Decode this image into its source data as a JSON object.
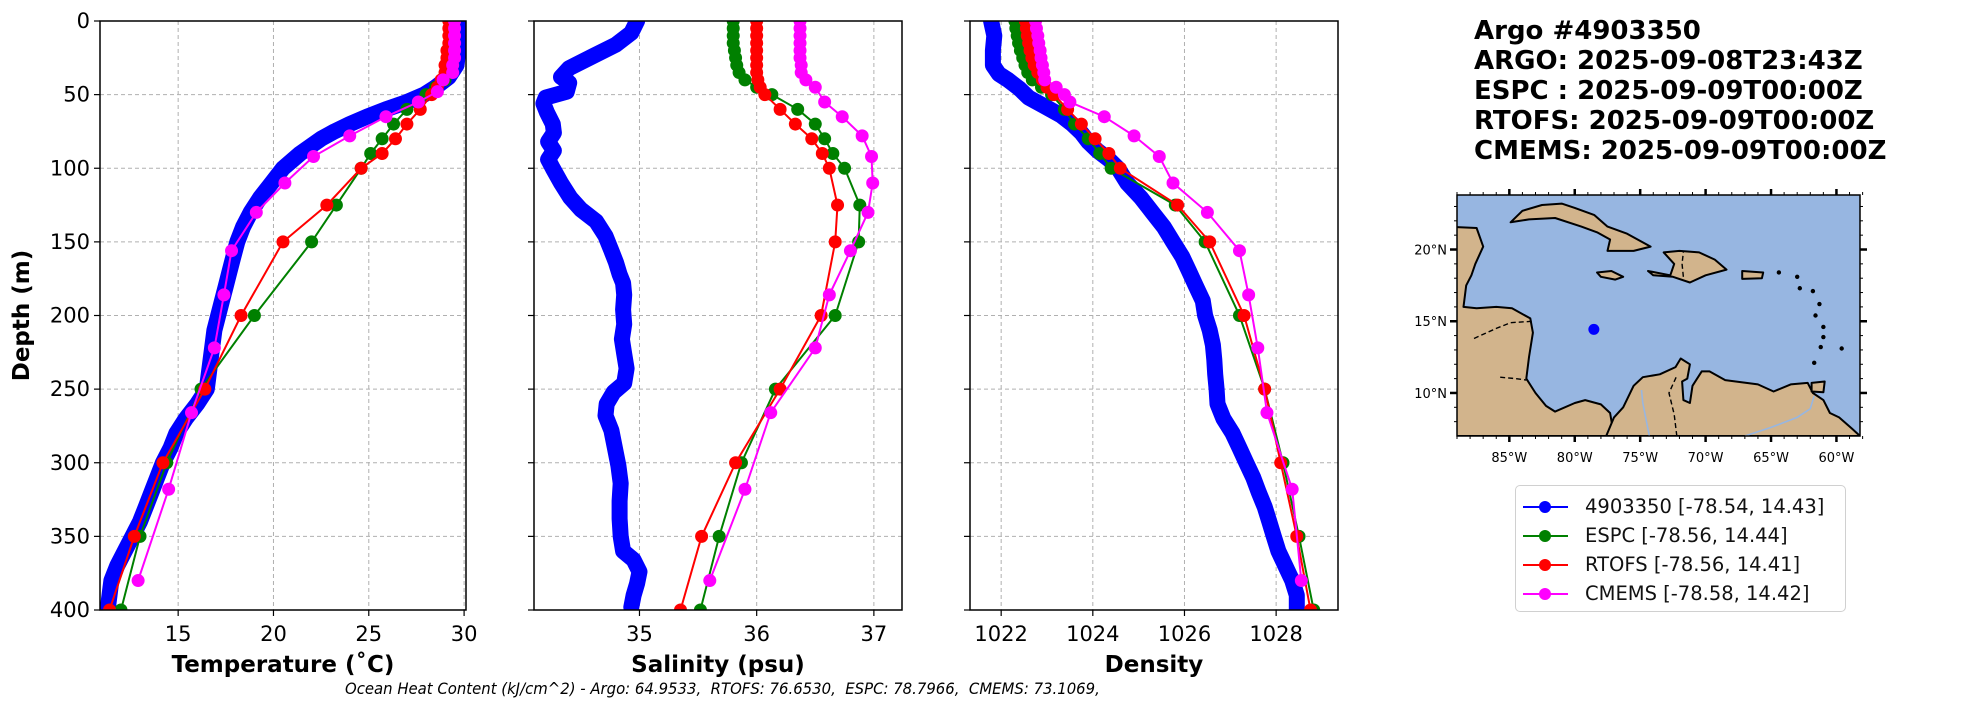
{
  "title": {
    "lines": [
      "Argo #4903350",
      "ARGO: 2025-09-08T23:43Z",
      "ESPC : 2025-09-09T00:00Z",
      "RTOFS: 2025-09-09T00:00Z",
      "CMEMS: 2025-09-09T00:00Z"
    ]
  },
  "footer": "Ocean Heat Content (kJ/cm^2) - Argo: 64.9533,  RTOFS: 76.6530,  ESPC: 78.7966,  CMEMS: 73.1069,",
  "legend": [
    {
      "label": "4903350 [-78.54, 14.43]",
      "color": "#0000ff"
    },
    {
      "label": "ESPC [-78.56, 14.44]",
      "color": "#008000"
    },
    {
      "label": "RTOFS [-78.56, 14.41]",
      "color": "#ff0000"
    },
    {
      "label": "CMEMS [-78.58, 14.42]",
      "color": "#ff00ff"
    }
  ],
  "chart_data": [
    {
      "type": "line",
      "panel": "temperature",
      "xlabel": "Temperature (˚C)",
      "ylabel": "Depth (m)",
      "xlim": [
        10.9,
        30.1
      ],
      "ylim": [
        400,
        0
      ],
      "xticks": [
        15,
        20,
        25,
        30
      ],
      "yticks": [
        0,
        50,
        100,
        150,
        200,
        250,
        300,
        350,
        400
      ],
      "grid": true,
      "series": [
        {
          "name": "4903350",
          "color": "#0000ff",
          "style": "argo",
          "depth": [
            0,
            10,
            20,
            30,
            38,
            45,
            50,
            55,
            60,
            65,
            70,
            75,
            80,
            90,
            100,
            110,
            120,
            130,
            140,
            150,
            160,
            170,
            180,
            190,
            200,
            210,
            220,
            230,
            240,
            250,
            260,
            270,
            280,
            290,
            300,
            310,
            320,
            330,
            340,
            350,
            360,
            370,
            380,
            390,
            400
          ],
          "values": [
            29.9,
            29.8,
            29.7,
            29.6,
            29.2,
            28.5,
            27.9,
            27.0,
            25.9,
            24.9,
            24.0,
            23.2,
            22.5,
            21.4,
            20.5,
            19.9,
            19.3,
            18.8,
            18.4,
            18.1,
            17.9,
            17.7,
            17.5,
            17.3,
            17.1,
            16.9,
            16.8,
            16.7,
            16.6,
            16.5,
            16.0,
            15.4,
            14.9,
            14.6,
            14.2,
            13.9,
            13.6,
            13.3,
            13.0,
            12.6,
            12.2,
            11.8,
            11.5,
            11.4,
            11.3
          ]
        },
        {
          "name": "ESPC",
          "color": "#008000",
          "style": "model",
          "depth": [
            0,
            5,
            10,
            15,
            20,
            25,
            30,
            35,
            40,
            45,
            50,
            60,
            70,
            80,
            90,
            100,
            125,
            150,
            200,
            250,
            300,
            350,
            400
          ],
          "values": [
            29.5,
            29.5,
            29.5,
            29.5,
            29.5,
            29.4,
            29.4,
            29.3,
            29.0,
            28.5,
            28.0,
            27.0,
            26.3,
            25.7,
            25.1,
            24.6,
            23.3,
            22.0,
            19.0,
            16.2,
            14.4,
            13.0,
            12.0
          ]
        },
        {
          "name": "RTOFS",
          "color": "#ff0000",
          "style": "model",
          "depth": [
            0,
            5,
            10,
            15,
            20,
            25,
            30,
            35,
            40,
            45,
            50,
            60,
            70,
            80,
            90,
            100,
            125,
            150,
            200,
            250,
            300,
            350,
            400
          ],
          "values": [
            29.2,
            29.2,
            29.2,
            29.2,
            29.1,
            29.1,
            29.0,
            29.0,
            28.8,
            28.6,
            28.3,
            27.7,
            27.0,
            26.4,
            25.7,
            24.6,
            22.8,
            20.5,
            18.3,
            16.4,
            14.2,
            12.7,
            11.4
          ]
        },
        {
          "name": "CMEMS",
          "color": "#ff00ff",
          "style": "model",
          "depth": [
            0,
            5,
            10,
            15,
            20,
            25,
            30,
            35,
            40,
            48,
            55,
            65,
            78,
            92,
            110,
            130,
            156,
            186,
            222,
            266,
            318,
            380
          ],
          "values": [
            29.5,
            29.5,
            29.5,
            29.5,
            29.5,
            29.5,
            29.4,
            29.4,
            28.9,
            28.6,
            27.6,
            25.9,
            24.0,
            22.1,
            20.6,
            19.1,
            17.8,
            17.4,
            16.9,
            15.7,
            14.5,
            12.9
          ]
        }
      ]
    },
    {
      "type": "line",
      "panel": "salinity",
      "xlabel": "Salinity (psu)",
      "xlim": [
        34.1,
        37.24
      ],
      "ylim": [
        400,
        0
      ],
      "xticks": [
        35,
        36,
        37
      ],
      "yticks": [
        0,
        50,
        100,
        150,
        200,
        250,
        300,
        350,
        400
      ],
      "grid": true,
      "series": [
        {
          "name": "4903350",
          "color": "#0000ff",
          "style": "argo",
          "depth": [
            0,
            8,
            16,
            24,
            32,
            38,
            42,
            48,
            52,
            56,
            62,
            70,
            76,
            82,
            88,
            94,
            100,
            110,
            120,
            128,
            136,
            146,
            156,
            164,
            172,
            178,
            186,
            196,
            206,
            216,
            226,
            236,
            246,
            252,
            260,
            268,
            278,
            290,
            302,
            314,
            326,
            338,
            350,
            360,
            366,
            374,
            382,
            390,
            398
          ],
          "values": [
            34.98,
            34.93,
            34.8,
            34.6,
            34.4,
            34.33,
            34.4,
            34.38,
            34.2,
            34.18,
            34.21,
            34.26,
            34.27,
            34.22,
            34.27,
            34.22,
            34.26,
            34.33,
            34.41,
            34.5,
            34.63,
            34.71,
            34.76,
            34.8,
            34.83,
            34.86,
            34.87,
            34.86,
            34.87,
            34.85,
            34.87,
            34.89,
            34.87,
            34.78,
            34.72,
            34.71,
            34.76,
            34.79,
            34.82,
            34.84,
            34.83,
            34.83,
            34.84,
            34.86,
            34.95,
            35.0,
            34.98,
            34.95,
            34.93
          ]
        },
        {
          "name": "ESPC",
          "color": "#008000",
          "style": "model",
          "depth": [
            0,
            5,
            10,
            15,
            20,
            25,
            30,
            35,
            40,
            45,
            50,
            60,
            70,
            80,
            90,
            100,
            125,
            150,
            200,
            250,
            300,
            350,
            400
          ],
          "values": [
            35.8,
            35.8,
            35.8,
            35.8,
            35.81,
            35.82,
            35.83,
            35.85,
            35.9,
            36.0,
            36.13,
            36.35,
            36.5,
            36.58,
            36.65,
            36.75,
            36.88,
            36.87,
            36.67,
            36.16,
            35.87,
            35.68,
            35.52
          ]
        },
        {
          "name": "RTOFS",
          "color": "#ff0000",
          "style": "model",
          "depth": [
            0,
            5,
            10,
            15,
            20,
            25,
            30,
            35,
            40,
            45,
            50,
            60,
            70,
            80,
            90,
            100,
            125,
            150,
            200,
            250,
            300,
            350,
            400
          ],
          "values": [
            36.0,
            36.0,
            36.0,
            36.0,
            36.0,
            36.0,
            36.0,
            36.0,
            36.01,
            36.03,
            36.07,
            36.2,
            36.33,
            36.47,
            36.56,
            36.62,
            36.69,
            36.67,
            36.55,
            36.2,
            35.82,
            35.53,
            35.35
          ]
        },
        {
          "name": "CMEMS",
          "color": "#ff00ff",
          "style": "model",
          "depth": [
            0,
            5,
            10,
            15,
            20,
            25,
            30,
            35,
            40,
            45,
            55,
            65,
            78,
            92,
            110,
            130,
            156,
            186,
            222,
            266,
            318,
            380
          ],
          "values": [
            36.37,
            36.37,
            36.37,
            36.37,
            36.37,
            36.37,
            36.38,
            36.38,
            36.42,
            36.5,
            36.58,
            36.73,
            36.9,
            36.98,
            36.99,
            36.95,
            36.8,
            36.62,
            36.5,
            36.12,
            35.9,
            35.6
          ]
        }
      ]
    },
    {
      "type": "line",
      "panel": "density",
      "xlabel": "Density",
      "xlim": [
        1021.32,
        1029.35
      ],
      "ylim": [
        400,
        0
      ],
      "xticks": [
        1022,
        1024,
        1026,
        1028
      ],
      "yticks": [
        0,
        50,
        100,
        150,
        200,
        250,
        300,
        350,
        400
      ],
      "grid": true,
      "series": [
        {
          "name": "4903350",
          "color": "#0000ff",
          "style": "argo",
          "depth": [
            0,
            10,
            20,
            30,
            36,
            40,
            46,
            52,
            58,
            64,
            70,
            76,
            82,
            88,
            94,
            100,
            110,
            120,
            130,
            140,
            150,
            160,
            170,
            180,
            190,
            200,
            210,
            220,
            230,
            240,
            250,
            260,
            270,
            280,
            290,
            300,
            310,
            320,
            330,
            340,
            350,
            360,
            370,
            380,
            390,
            400
          ],
          "values": [
            1021.78,
            1021.85,
            1021.82,
            1021.82,
            1021.95,
            1022.15,
            1022.4,
            1022.6,
            1022.95,
            1023.3,
            1023.55,
            1023.75,
            1023.9,
            1024.1,
            1024.35,
            1024.55,
            1024.75,
            1025.05,
            1025.3,
            1025.55,
            1025.75,
            1025.95,
            1026.1,
            1026.25,
            1026.4,
            1026.45,
            1026.55,
            1026.62,
            1026.65,
            1026.67,
            1026.7,
            1026.72,
            1026.85,
            1027.05,
            1027.2,
            1027.35,
            1027.5,
            1027.62,
            1027.75,
            1027.85,
            1027.95,
            1028.05,
            1028.2,
            1028.35,
            1028.45,
            1028.45
          ]
        },
        {
          "name": "ESPC",
          "color": "#008000",
          "style": "model",
          "depth": [
            0,
            5,
            10,
            15,
            20,
            25,
            30,
            35,
            40,
            45,
            50,
            60,
            70,
            80,
            90,
            100,
            125,
            150,
            200,
            250,
            300,
            350,
            400
          ],
          "values": [
            1022.3,
            1022.32,
            1022.35,
            1022.38,
            1022.42,
            1022.47,
            1022.52,
            1022.58,
            1022.68,
            1022.88,
            1023.1,
            1023.38,
            1023.6,
            1023.9,
            1024.15,
            1024.4,
            1025.8,
            1026.45,
            1027.2,
            1027.75,
            1028.15,
            1028.5,
            1028.82
          ]
        },
        {
          "name": "RTOFS",
          "color": "#ff0000",
          "style": "model",
          "depth": [
            0,
            5,
            10,
            15,
            20,
            25,
            30,
            35,
            40,
            45,
            50,
            60,
            70,
            80,
            90,
            100,
            125,
            150,
            200,
            250,
            300,
            350,
            400
          ],
          "values": [
            1022.53,
            1022.55,
            1022.57,
            1022.6,
            1022.63,
            1022.67,
            1022.72,
            1022.8,
            1022.9,
            1023.0,
            1023.15,
            1023.45,
            1023.75,
            1024.05,
            1024.35,
            1024.6,
            1025.85,
            1026.55,
            1027.3,
            1027.75,
            1028.1,
            1028.45,
            1028.75
          ]
        },
        {
          "name": "CMEMS",
          "color": "#ff00ff",
          "style": "model",
          "depth": [
            0,
            5,
            10,
            15,
            20,
            25,
            30,
            35,
            40,
            45,
            50,
            55,
            65,
            78,
            92,
            110,
            130,
            156,
            186,
            222,
            266,
            318,
            380
          ],
          "values": [
            1022.75,
            1022.77,
            1022.8,
            1022.82,
            1022.85,
            1022.87,
            1022.9,
            1022.93,
            1022.95,
            1023.2,
            1023.38,
            1023.5,
            1024.25,
            1024.9,
            1025.45,
            1025.75,
            1026.5,
            1027.2,
            1027.4,
            1027.6,
            1027.8,
            1028.35,
            1028.55
          ]
        }
      ]
    },
    {
      "type": "map",
      "panel": "location-map",
      "lon_range": [
        -89,
        -58.2
      ],
      "lat_range": [
        7.0,
        23.8
      ],
      "xticks": [
        -85,
        -80,
        -75,
        -70,
        -65,
        -60
      ],
      "xtick_labels": [
        "85°W",
        "80°W",
        "75°W",
        "70°W",
        "65°W",
        "60°W"
      ],
      "yticks": [
        10,
        15,
        20
      ],
      "ytick_labels": [
        "10°N",
        "15°N",
        "20°N"
      ],
      "ocean_color": "#97b6e1",
      "land_color": "#d2b48c",
      "marker": {
        "lon": -78.54,
        "lat": 14.43,
        "color": "#0000ff"
      }
    }
  ]
}
